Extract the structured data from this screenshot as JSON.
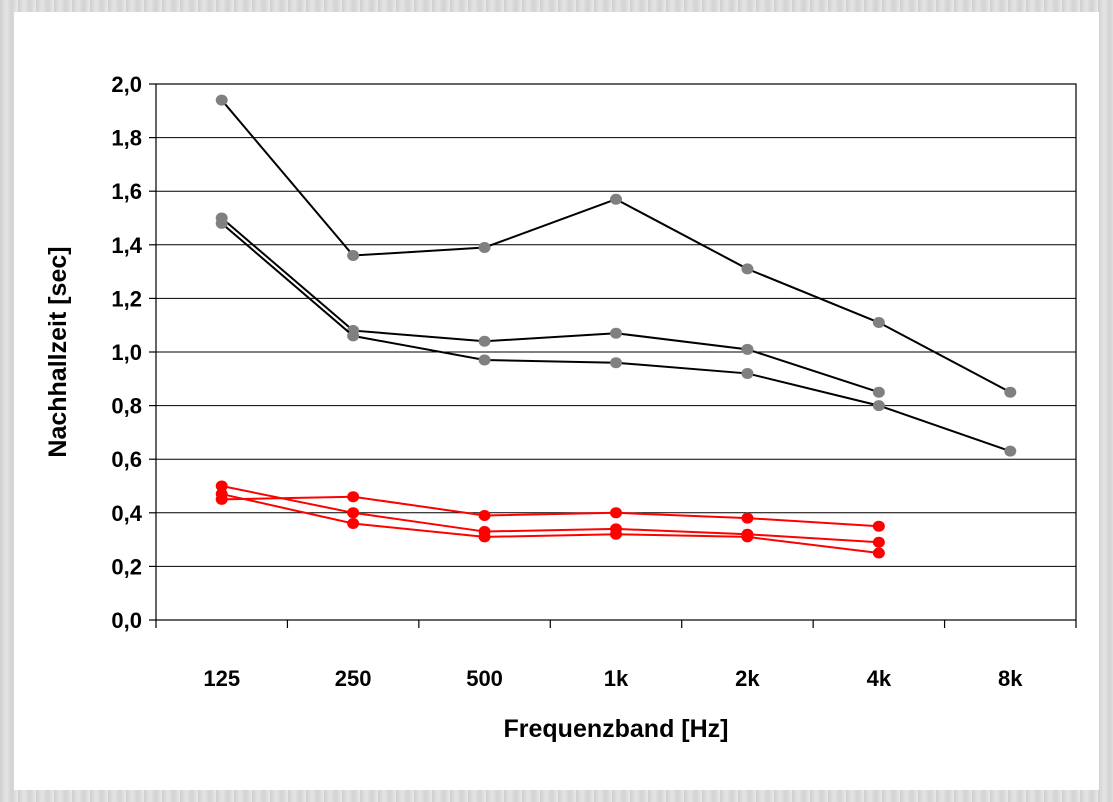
{
  "chart_data": {
    "type": "line",
    "xlabel": "Frequenzband [Hz]",
    "ylabel": "Nachhallzeit [sec]",
    "categories": [
      "125",
      "250",
      "500",
      "1k",
      "2k",
      "4k",
      "8k"
    ],
    "ylim": [
      0,
      2.0
    ],
    "yticks": [
      "0,0",
      "0,2",
      "0,4",
      "0,6",
      "0,8",
      "1,0",
      "1,2",
      "1,4",
      "1,6",
      "1,8",
      "2,0"
    ],
    "grid": true,
    "legend": "none",
    "series": [
      {
        "color": "#808080",
        "values": [
          1.94,
          1.36,
          1.39,
          1.57,
          1.31,
          1.11,
          0.85
        ]
      },
      {
        "color": "#808080",
        "values": [
          1.5,
          1.08,
          1.04,
          1.07,
          1.01,
          0.85,
          null
        ]
      },
      {
        "color": "#808080",
        "values": [
          1.48,
          1.06,
          0.97,
          0.96,
          0.92,
          0.8,
          0.63
        ]
      },
      {
        "color": "#ff0000",
        "values": [
          0.5,
          0.4,
          0.33,
          0.34,
          0.32,
          0.29,
          null
        ]
      },
      {
        "color": "#ff0000",
        "values": [
          0.45,
          0.46,
          0.39,
          0.4,
          0.38,
          0.35,
          null
        ]
      },
      {
        "color": "#ff0000",
        "values": [
          0.47,
          0.36,
          0.31,
          0.32,
          0.31,
          0.25,
          null
        ]
      }
    ]
  }
}
